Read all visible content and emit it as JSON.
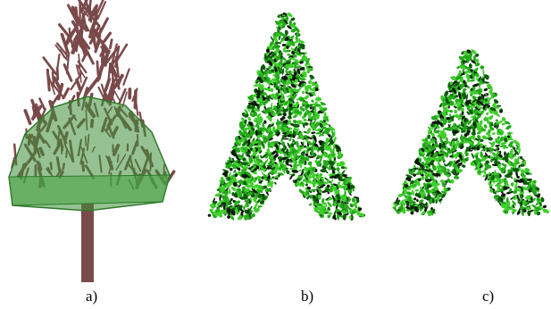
{
  "figure": {
    "panels": [
      {
        "id": "a",
        "label": "a)",
        "content": "tree-branches-with-crown-hull"
      },
      {
        "id": "b",
        "label": "b)",
        "content": "leaf-foliage-dense"
      },
      {
        "id": "c",
        "label": "c)",
        "content": "leaf-foliage-compact"
      }
    ]
  },
  "colors": {
    "branch": "#7a4a4a",
    "hull": "#3f8f3a",
    "hull_edge": "#2e7a2a",
    "leaf_light": "#3ecf2a",
    "leaf_mid": "#24a81a",
    "leaf_dark": "#0d5a0b",
    "leaf_black": "#0a1a08"
  }
}
